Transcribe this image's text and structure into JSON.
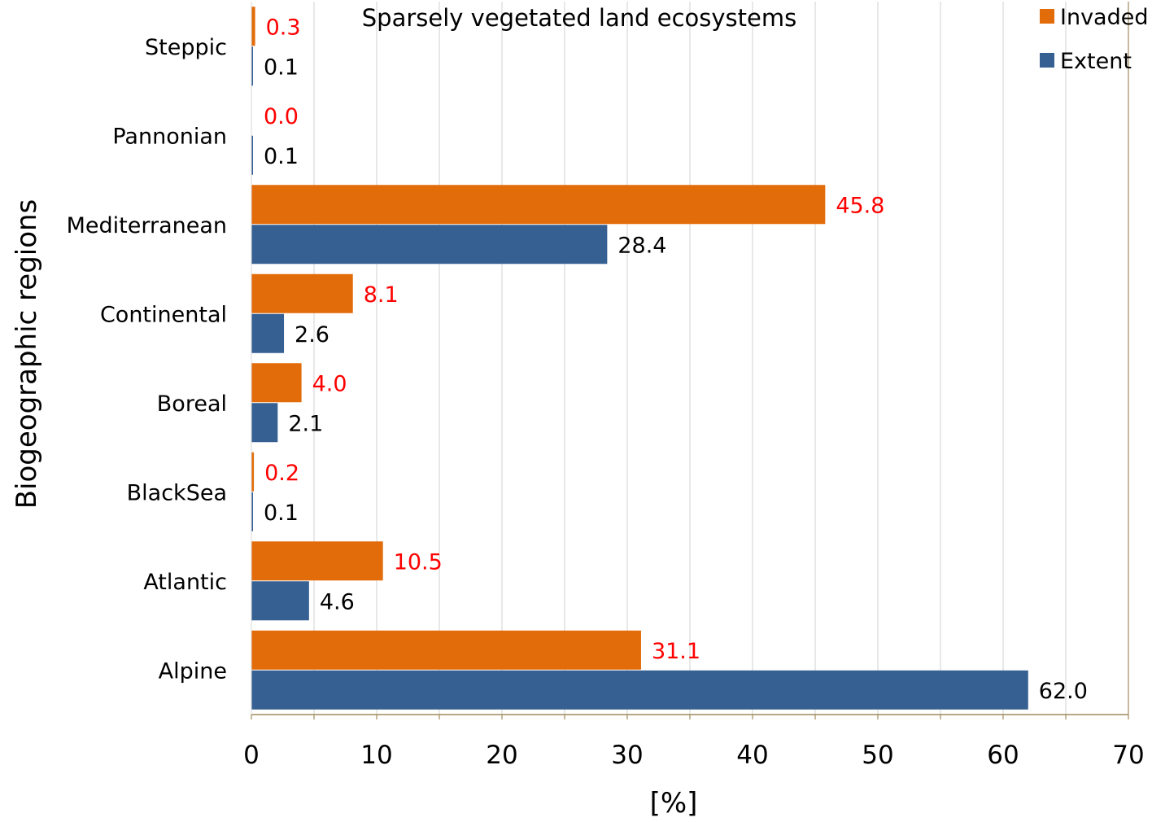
{
  "chart_data": {
    "type": "bar",
    "orientation": "horizontal",
    "title": "Sparsely vegetated land ecosystems",
    "xlabel": "[%]",
    "ylabel": "Biogeographic regions",
    "xlim": [
      0,
      70
    ],
    "xticks": [
      0,
      10,
      20,
      30,
      40,
      50,
      60,
      70
    ],
    "grid": true,
    "legend_position": "top-right",
    "categories": [
      "Steppic",
      "Pannonian",
      "Mediterranean",
      "Continental",
      "Boreal",
      "BlackSea",
      "Atlantic",
      "Alpine"
    ],
    "series": [
      {
        "name": "Invaded",
        "color": "#E36C0A",
        "label_color": "#FF0000",
        "values": [
          0.3,
          0.0,
          45.8,
          8.1,
          4.0,
          0.2,
          10.5,
          31.1
        ],
        "labels": [
          "0.3",
          "0.0",
          "45.8",
          "8.1",
          "4.0",
          "0.2",
          "10.5",
          "31.1"
        ]
      },
      {
        "name": "Extent",
        "color": "#376092",
        "label_color": "#000000",
        "values": [
          0.1,
          0.1,
          28.4,
          2.6,
          2.1,
          0.1,
          4.6,
          62.0
        ],
        "labels": [
          "0.1",
          "0.1",
          "28.4",
          "2.6",
          "2.1",
          "0.1",
          "4.6",
          "62.0"
        ]
      }
    ]
  }
}
